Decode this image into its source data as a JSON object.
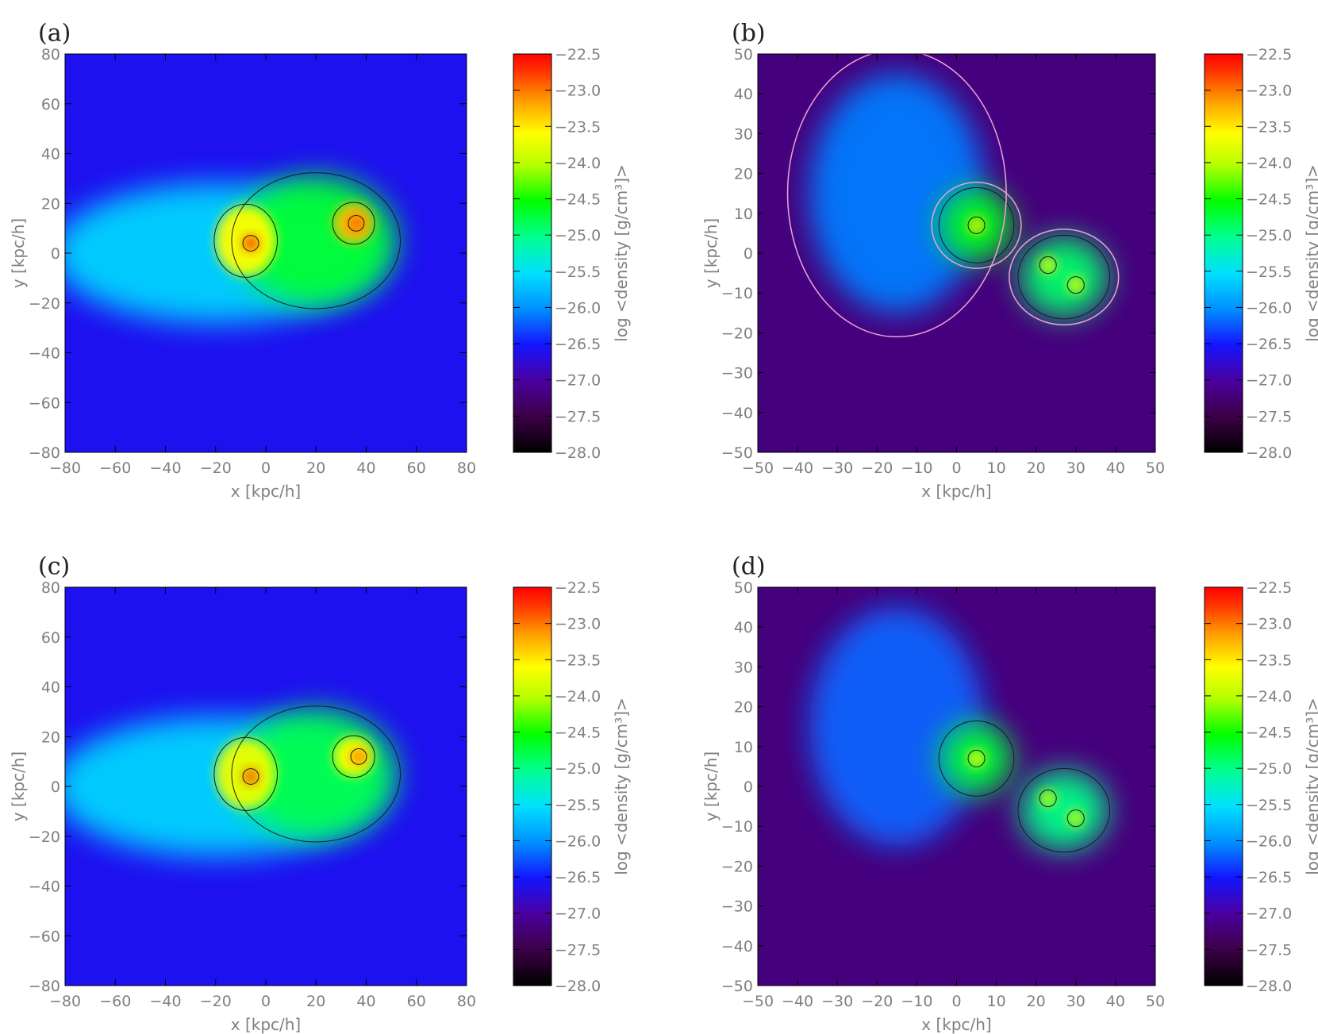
{
  "colorbar": {
    "min": -28.0,
    "max": -22.5,
    "ticks": [
      "-22.5",
      "-23.0",
      "-23.5",
      "-24.0",
      "-24.5",
      "-25.0",
      "-25.5",
      "-26.0",
      "-26.5",
      "-27.0",
      "-27.5",
      "-28.0"
    ],
    "label": "log <density [g/cm³]>"
  },
  "chart_data": [
    {
      "type": "heatmap",
      "panel_label": "(a)",
      "xlabel": "x [kpc/h]",
      "ylabel": "y [kpc/h]",
      "xlim": [
        -80,
        80
      ],
      "ylim": [
        -80,
        80
      ],
      "xticks": [
        "-80",
        "-60",
        "-40",
        "-20",
        "0",
        "20",
        "40",
        "60",
        "80"
      ],
      "yticks": [
        "-80",
        "-60",
        "-40",
        "-20",
        "0",
        "20",
        "40",
        "60",
        "80"
      ],
      "colorbar_label": "log <density [g/cm³]>",
      "contours": "black",
      "blobs": [
        {
          "x": -20,
          "y": 0,
          "rx": 65,
          "ry": 28,
          "value": -25.6
        },
        {
          "x": 20,
          "y": 5,
          "rx": 32,
          "ry": 26,
          "value": -24.7
        },
        {
          "x": -8,
          "y": 5,
          "rx": 12,
          "ry": 14,
          "value": -23.6
        },
        {
          "x": 35,
          "y": 12,
          "rx": 8,
          "ry": 8,
          "value": -23.3
        },
        {
          "x": -6,
          "y": 4,
          "rx": 3,
          "ry": 3,
          "value": -22.7
        },
        {
          "x": 36,
          "y": 12,
          "rx": 3,
          "ry": 3,
          "value": -22.9
        }
      ]
    },
    {
      "type": "heatmap",
      "panel_label": "(b)",
      "xlabel": "x [kpc/h]",
      "ylabel": "y [kpc/h]",
      "xlim": [
        -50,
        50
      ],
      "ylim": [
        -50,
        50
      ],
      "xticks": [
        "-50",
        "-40",
        "-30",
        "-20",
        "-10",
        "0",
        "10",
        "20",
        "30",
        "40",
        "50"
      ],
      "yticks": [
        "-50",
        "-40",
        "-30",
        "-20",
        "-10",
        "0",
        "10",
        "20",
        "30",
        "40",
        "50"
      ],
      "colorbar_label": "log <density [g/cm³]>",
      "contours": "black and pink",
      "blobs": [
        {
          "x": -15,
          "y": 15,
          "rx": 22,
          "ry": 30,
          "value": -26.1
        },
        {
          "x": 5,
          "y": 7,
          "rx": 9,
          "ry": 9,
          "value": -24.6
        },
        {
          "x": 27,
          "y": -6,
          "rx": 11,
          "ry": 10,
          "value": -24.9
        },
        {
          "x": 5,
          "y": 7,
          "rx": 2,
          "ry": 2,
          "value": -23.5
        },
        {
          "x": 23,
          "y": -3,
          "rx": 2,
          "ry": 2,
          "value": -23.7
        },
        {
          "x": 30,
          "y": -8,
          "rx": 2,
          "ry": 2,
          "value": -23.7
        }
      ]
    },
    {
      "type": "heatmap",
      "panel_label": "(c)",
      "xlabel": "x [kpc/h]",
      "ylabel": "y [kpc/h]",
      "xlim": [
        -80,
        80
      ],
      "ylim": [
        -80,
        80
      ],
      "xticks": [
        "-80",
        "-60",
        "-40",
        "-20",
        "0",
        "20",
        "40",
        "60",
        "80"
      ],
      "yticks": [
        "-80",
        "-60",
        "-40",
        "-20",
        "0",
        "20",
        "40",
        "60",
        "80"
      ],
      "colorbar_label": "log <density [g/cm³]>",
      "contours": "black",
      "blobs": [
        {
          "x": -20,
          "y": 0,
          "rx": 65,
          "ry": 28,
          "value": -25.6
        },
        {
          "x": 20,
          "y": 5,
          "rx": 32,
          "ry": 26,
          "value": -24.8
        },
        {
          "x": -8,
          "y": 5,
          "rx": 12,
          "ry": 14,
          "value": -23.7
        },
        {
          "x": 35,
          "y": 12,
          "rx": 8,
          "ry": 8,
          "value": -23.6
        },
        {
          "x": -6,
          "y": 4,
          "rx": 3,
          "ry": 3,
          "value": -22.8
        },
        {
          "x": 37,
          "y": 12,
          "rx": 3,
          "ry": 3,
          "value": -23.0
        }
      ]
    },
    {
      "type": "heatmap",
      "panel_label": "(d)",
      "xlabel": "x [kpc/h]",
      "ylabel": "y [kpc/h]",
      "xlim": [
        -50,
        50
      ],
      "ylim": [
        -50,
        50
      ],
      "xticks": [
        "-50",
        "-40",
        "-30",
        "-20",
        "-10",
        "0",
        "10",
        "20",
        "30",
        "40",
        "50"
      ],
      "yticks": [
        "-50",
        "-40",
        "-30",
        "-20",
        "-10",
        "0",
        "10",
        "20",
        "30",
        "40",
        "50"
      ],
      "colorbar_label": "log <density [g/cm³]>",
      "contours": "black",
      "blobs": [
        {
          "x": -15,
          "y": 15,
          "rx": 22,
          "ry": 30,
          "value": -26.2
        },
        {
          "x": 5,
          "y": 7,
          "rx": 9,
          "ry": 9,
          "value": -24.7
        },
        {
          "x": 27,
          "y": -6,
          "rx": 11,
          "ry": 10,
          "value": -25.0
        },
        {
          "x": 5,
          "y": 7,
          "rx": 2,
          "ry": 2,
          "value": -23.6
        },
        {
          "x": 23,
          "y": -3,
          "rx": 2,
          "ry": 2,
          "value": -23.9
        },
        {
          "x": 30,
          "y": -8,
          "rx": 2,
          "ry": 2,
          "value": -23.9
        }
      ]
    }
  ]
}
